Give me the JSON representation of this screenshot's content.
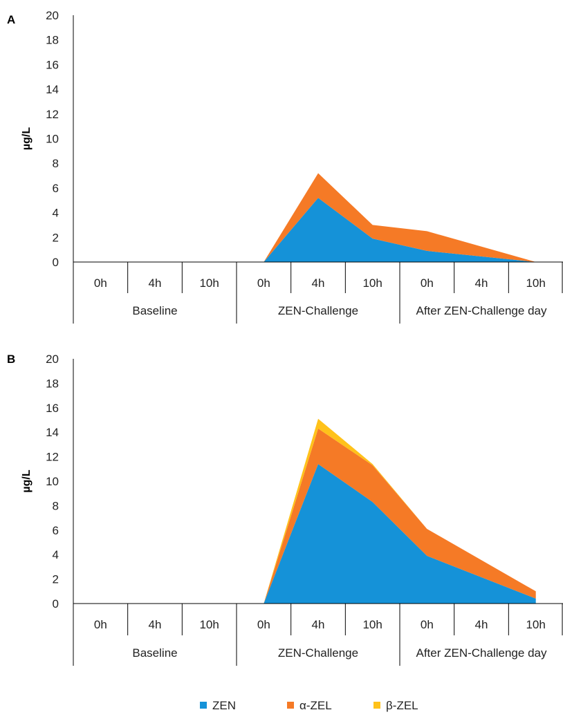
{
  "figure": {
    "colors": {
      "ZEN": "#1592d8",
      "α-ZEL": "#f57a26",
      "β-ZEL": "#ffc21a",
      "axis": "#000000"
    },
    "legend": [
      {
        "key": "ZEN",
        "label": "ZEN"
      },
      {
        "key": "α-ZEL",
        "label": "α-ZEL"
      },
      {
        "key": "β-ZEL",
        "label": "β-ZEL"
      }
    ]
  },
  "chart_data": [
    {
      "panel": "A",
      "type": "area",
      "stacked": true,
      "ylabel": "µg/L",
      "ylim": [
        0,
        20
      ],
      "yticks": [
        0,
        2,
        4,
        6,
        8,
        10,
        12,
        14,
        16,
        18,
        20
      ],
      "categories": [
        "0h",
        "4h",
        "10h",
        "0h",
        "4h",
        "10h",
        "0h",
        "4h",
        "10h"
      ],
      "groups": [
        {
          "label": "Baseline",
          "span": 3
        },
        {
          "label": "ZEN-Challenge",
          "span": 3
        },
        {
          "label": "After ZEN-Challenge day",
          "span": 3
        }
      ],
      "series": [
        {
          "name": "ZEN",
          "values": [
            null,
            null,
            null,
            0,
            5.2,
            1.9,
            0.9,
            null,
            0
          ]
        },
        {
          "name": "α-ZEL",
          "values": [
            null,
            null,
            null,
            0,
            2.0,
            1.1,
            1.6,
            null,
            0
          ]
        },
        {
          "name": "β-ZEL",
          "values": [
            null,
            null,
            null,
            0,
            0,
            0,
            0,
            null,
            0
          ]
        }
      ]
    },
    {
      "panel": "B",
      "type": "area",
      "stacked": true,
      "ylabel": "µg/L",
      "ylim": [
        0,
        20
      ],
      "yticks": [
        0,
        2,
        4,
        6,
        8,
        10,
        12,
        14,
        16,
        18,
        20
      ],
      "categories": [
        "0h",
        "4h",
        "10h",
        "0h",
        "4h",
        "10h",
        "0h",
        "4h",
        "10h"
      ],
      "groups": [
        {
          "label": "Baseline",
          "span": 3
        },
        {
          "label": "ZEN-Challenge",
          "span": 3
        },
        {
          "label": "After ZEN-Challenge day",
          "span": 3
        }
      ],
      "series": [
        {
          "name": "ZEN",
          "values": [
            null,
            null,
            null,
            0,
            11.4,
            8.3,
            3.9,
            null,
            0.4
          ]
        },
        {
          "name": "α-ZEL",
          "values": [
            null,
            null,
            null,
            0,
            2.9,
            3.0,
            2.2,
            null,
            0.6
          ]
        },
        {
          "name": "β-ZEL",
          "values": [
            null,
            null,
            null,
            0,
            0.8,
            0.1,
            0,
            null,
            0
          ]
        }
      ]
    }
  ]
}
